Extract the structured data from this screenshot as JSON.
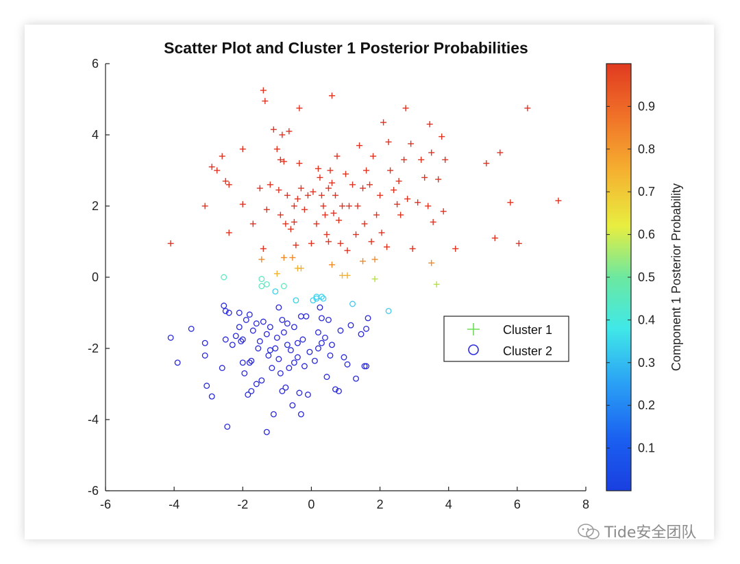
{
  "chart_data": {
    "type": "scatter",
    "title": "Scatter Plot and Cluster 1 Posterior Probabilities",
    "xlabel": "",
    "ylabel": "",
    "xlim": [
      -6,
      8
    ],
    "ylim": [
      -6,
      6
    ],
    "x_ticks": [
      -6,
      -4,
      -2,
      0,
      2,
      4,
      6,
      8
    ],
    "y_ticks": [
      -6,
      -4,
      -2,
      0,
      2,
      4,
      6
    ],
    "legend": {
      "placement": "east",
      "entries": [
        "Cluster 1",
        "Cluster 2"
      ]
    },
    "colorbar": {
      "label": "Component 1 Posterior Probability",
      "ticks": [
        0.1,
        0.2,
        0.3,
        0.4,
        0.5,
        0.6,
        0.7,
        0.8,
        0.9
      ],
      "range": [
        0,
        1
      ],
      "colormap": "jet"
    },
    "series": [
      {
        "name": "Cluster 1",
        "marker": "+",
        "points": [
          [
            -4.1,
            0.95
          ],
          [
            -3.1,
            2.0
          ],
          [
            -2.9,
            3.1
          ],
          [
            -2.75,
            3.0
          ],
          [
            -2.6,
            3.4
          ],
          [
            -2.5,
            2.7
          ],
          [
            -2.4,
            2.6
          ],
          [
            -2.4,
            1.25
          ],
          [
            -2.0,
            3.6
          ],
          [
            -2.0,
            2.05
          ],
          [
            -1.7,
            1.5
          ],
          [
            -1.5,
            2.5
          ],
          [
            -1.4,
            0.8
          ],
          [
            -1.4,
            5.25
          ],
          [
            -1.35,
            4.95
          ],
          [
            -1.3,
            1.9
          ],
          [
            -1.2,
            2.6
          ],
          [
            -1.1,
            4.15
          ],
          [
            -1.0,
            3.6
          ],
          [
            -0.95,
            2.45
          ],
          [
            -0.9,
            3.3
          ],
          [
            -0.9,
            1.75
          ],
          [
            -0.85,
            4.0
          ],
          [
            -0.8,
            3.25
          ],
          [
            -0.75,
            1.5
          ],
          [
            -0.7,
            2.3
          ],
          [
            -0.65,
            4.1
          ],
          [
            -0.6,
            1.35
          ],
          [
            -0.55,
            0.55
          ],
          [
            -0.5,
            2.0
          ],
          [
            -0.5,
            1.55
          ],
          [
            -0.45,
            0.9
          ],
          [
            -0.4,
            2.2
          ],
          [
            -0.35,
            3.2
          ],
          [
            -0.35,
            4.75
          ],
          [
            -0.3,
            2.5
          ],
          [
            -0.2,
            1.9
          ],
          [
            -0.1,
            2.3
          ],
          [
            0.0,
            0.95
          ],
          [
            0.05,
            2.4
          ],
          [
            0.15,
            1.5
          ],
          [
            0.2,
            3.05
          ],
          [
            0.25,
            2.8
          ],
          [
            0.3,
            2.3
          ],
          [
            0.35,
            2.0
          ],
          [
            0.4,
            1.75
          ],
          [
            0.45,
            1.2
          ],
          [
            0.5,
            2.5
          ],
          [
            0.5,
            1.0
          ],
          [
            0.55,
            3.0
          ],
          [
            0.6,
            2.65
          ],
          [
            0.6,
            5.1
          ],
          [
            0.65,
            1.8
          ],
          [
            0.7,
            2.3
          ],
          [
            0.75,
            3.4
          ],
          [
            0.8,
            1.6
          ],
          [
            0.85,
            0.95
          ],
          [
            0.9,
            2.0
          ],
          [
            1.0,
            2.9
          ],
          [
            1.05,
            0.75
          ],
          [
            1.1,
            2.0
          ],
          [
            1.2,
            2.6
          ],
          [
            1.3,
            1.2
          ],
          [
            1.35,
            2.0
          ],
          [
            1.4,
            3.7
          ],
          [
            1.5,
            2.5
          ],
          [
            1.55,
            1.5
          ],
          [
            1.6,
            3.0
          ],
          [
            1.7,
            2.6
          ],
          [
            1.75,
            1.0
          ],
          [
            1.8,
            3.4
          ],
          [
            1.85,
            0.5
          ],
          [
            1.9,
            1.75
          ],
          [
            2.0,
            2.3
          ],
          [
            2.05,
            1.25
          ],
          [
            2.1,
            4.35
          ],
          [
            2.2,
            0.85
          ],
          [
            2.25,
            3.8
          ],
          [
            2.3,
            3.0
          ],
          [
            2.4,
            2.45
          ],
          [
            2.5,
            2.05
          ],
          [
            2.55,
            2.7
          ],
          [
            2.6,
            1.75
          ],
          [
            2.7,
            3.3
          ],
          [
            2.75,
            4.75
          ],
          [
            2.8,
            2.2
          ],
          [
            2.9,
            3.75
          ],
          [
            2.95,
            0.8
          ],
          [
            3.1,
            2.1
          ],
          [
            3.2,
            3.3
          ],
          [
            3.3,
            2.8
          ],
          [
            3.4,
            2.0
          ],
          [
            3.45,
            4.3
          ],
          [
            3.5,
            0.4
          ],
          [
            3.5,
            3.5
          ],
          [
            3.55,
            1.55
          ],
          [
            3.65,
            -0.2
          ],
          [
            3.7,
            2.75
          ],
          [
            3.8,
            3.95
          ],
          [
            3.85,
            1.85
          ],
          [
            3.9,
            3.3
          ],
          [
            4.2,
            0.8
          ],
          [
            5.1,
            3.2
          ],
          [
            5.35,
            1.1
          ],
          [
            5.5,
            3.5
          ],
          [
            5.8,
            2.1
          ],
          [
            6.05,
            0.95
          ],
          [
            6.3,
            4.75
          ],
          [
            7.2,
            2.15
          ],
          [
            -1.45,
            0.5
          ],
          [
            -0.8,
            0.55
          ],
          [
            -0.4,
            0.25
          ],
          [
            -0.3,
            0.25
          ],
          [
            0.9,
            0.05
          ],
          [
            1.05,
            0.05
          ],
          [
            1.85,
            -0.05
          ],
          [
            -1.0,
            0.1
          ],
          [
            0.6,
            0.35
          ],
          [
            1.5,
            0.45
          ]
        ]
      },
      {
        "name": "Cluster 2",
        "marker": "o",
        "points": [
          [
            -4.1,
            -1.7
          ],
          [
            -3.9,
            -2.4
          ],
          [
            -3.5,
            -1.45
          ],
          [
            -3.1,
            -1.85
          ],
          [
            -3.1,
            -2.2
          ],
          [
            -3.05,
            -3.05
          ],
          [
            -2.9,
            -3.35
          ],
          [
            -2.6,
            -2.55
          ],
          [
            -2.5,
            -1.75
          ],
          [
            -2.45,
            -4.2
          ],
          [
            -2.4,
            -1.0
          ],
          [
            -2.3,
            -1.9
          ],
          [
            -2.2,
            -1.65
          ],
          [
            -2.1,
            -1.4
          ],
          [
            -2.05,
            -1.8
          ],
          [
            -2.0,
            -2.4
          ],
          [
            -1.95,
            -2.7
          ],
          [
            -1.9,
            -1.2
          ],
          [
            -1.85,
            -3.3
          ],
          [
            -1.8,
            -1.05
          ],
          [
            -1.75,
            -2.35
          ],
          [
            -1.7,
            -1.5
          ],
          [
            -1.6,
            -3.0
          ],
          [
            -1.5,
            -1.8
          ],
          [
            -1.45,
            -2.9
          ],
          [
            -1.4,
            -1.25
          ],
          [
            -1.3,
            -1.6
          ],
          [
            -1.3,
            -4.35
          ],
          [
            -1.25,
            -2.2
          ],
          [
            -1.2,
            -1.4
          ],
          [
            -1.15,
            -2.55
          ],
          [
            -1.1,
            -3.85
          ],
          [
            -1.0,
            -1.7
          ],
          [
            -0.95,
            -2.3
          ],
          [
            -0.9,
            -2.7
          ],
          [
            -0.85,
            -1.2
          ],
          [
            -0.8,
            -1.55
          ],
          [
            -0.75,
            -3.1
          ],
          [
            -0.7,
            -1.9
          ],
          [
            -0.65,
            -2.55
          ],
          [
            -0.6,
            -2.05
          ],
          [
            -0.55,
            -3.6
          ],
          [
            -0.5,
            -1.4
          ],
          [
            -0.45,
            -0.65
          ],
          [
            -0.4,
            -2.25
          ],
          [
            -0.35,
            -3.25
          ],
          [
            -0.3,
            -3.85
          ],
          [
            -0.25,
            -1.75
          ],
          [
            -0.2,
            -2.5
          ],
          [
            -0.15,
            -1.1
          ],
          [
            -0.1,
            -3.3
          ],
          [
            -0.05,
            -2.1
          ],
          [
            0.1,
            -2.35
          ],
          [
            0.15,
            -0.55
          ],
          [
            0.2,
            -1.55
          ],
          [
            0.25,
            -0.85
          ],
          [
            0.3,
            -1.15
          ],
          [
            0.35,
            -0.6
          ],
          [
            0.4,
            -1.7
          ],
          [
            0.45,
            -2.8
          ],
          [
            0.5,
            -1.2
          ],
          [
            0.6,
            -1.9
          ],
          [
            0.7,
            -3.15
          ],
          [
            0.8,
            -3.2
          ],
          [
            0.85,
            -1.5
          ],
          [
            0.95,
            -2.25
          ],
          [
            1.05,
            -2.45
          ],
          [
            1.15,
            -1.35
          ],
          [
            1.3,
            -2.85
          ],
          [
            1.45,
            -1.6
          ],
          [
            1.55,
            -2.5
          ],
          [
            1.6,
            -1.45
          ],
          [
            1.65,
            -1.15
          ],
          [
            -2.55,
            -0.8
          ],
          [
            -2.5,
            -0.95
          ],
          [
            -2.1,
            -1.0
          ],
          [
            -1.6,
            -1.3
          ],
          [
            -0.95,
            -0.85
          ],
          [
            -0.7,
            -1.3
          ],
          [
            -1.55,
            -2.0
          ],
          [
            -0.3,
            -1.1
          ],
          [
            0.2,
            -2.0
          ],
          [
            0.05,
            -0.65
          ],
          [
            -1.05,
            -2.0
          ],
          [
            -2.0,
            -1.75
          ],
          [
            -0.5,
            -2.4
          ],
          [
            0.55,
            -2.2
          ],
          [
            1.6,
            -2.5
          ],
          [
            -1.8,
            -2.4
          ],
          [
            -1.2,
            -2.05
          ],
          [
            -0.4,
            -1.85
          ],
          [
            0.3,
            -1.85
          ],
          [
            -0.85,
            -3.2
          ],
          [
            -1.75,
            -3.2
          ],
          [
            -2.55,
            0.0
          ],
          [
            -1.45,
            -0.05
          ],
          [
            -1.3,
            -0.2
          ],
          [
            -1.45,
            -0.25
          ],
          [
            -1.05,
            -0.4
          ],
          [
            -0.8,
            -0.25
          ],
          [
            0.3,
            -0.55
          ],
          [
            0.15,
            -0.6
          ],
          [
            1.2,
            -0.75
          ],
          [
            2.25,
            -0.95
          ]
        ]
      }
    ],
    "colors": {
      "cluster1_core": "#e0301e",
      "cluster2_core": "#2626d9",
      "legend_cluster1": "#6be050",
      "legend_cluster2": "#2a2ae0"
    }
  },
  "watermark": {
    "text": "Tide安全团队"
  }
}
